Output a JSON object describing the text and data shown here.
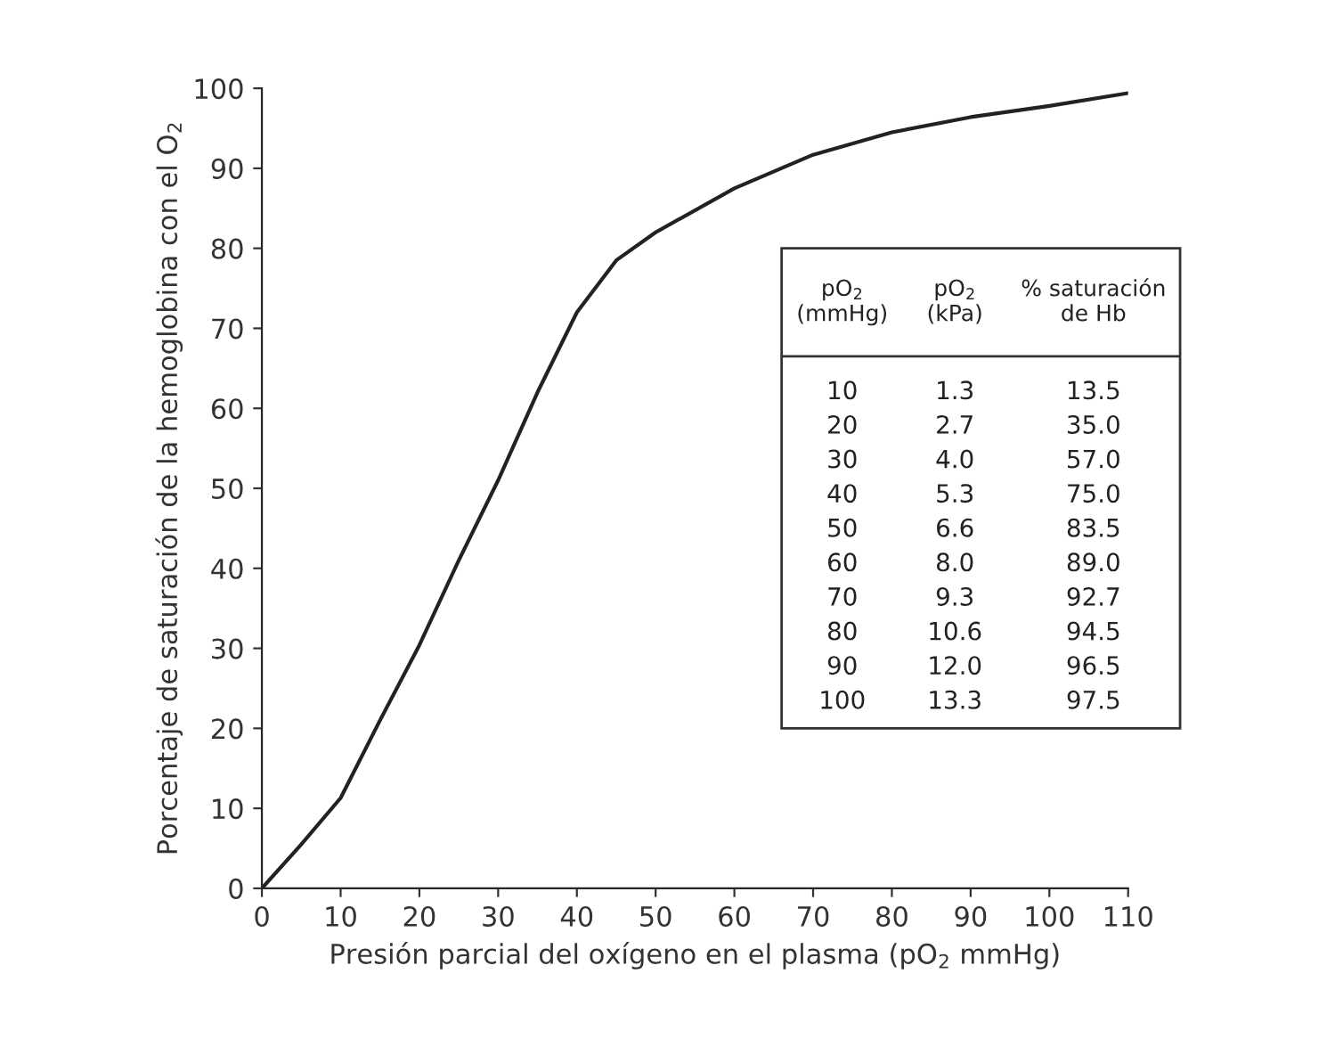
{
  "chart_data": {
    "type": "line",
    "xlabel": "Presión parcial del oxígeno en el plasma (pO$_{2}$ mmHg)",
    "ylabel": "Porcentaje de saturación de la hemoglobina con el O$_{2}$",
    "x": [
      0,
      5,
      10,
      15,
      20,
      25,
      30,
      35,
      40,
      45,
      50,
      60,
      70,
      80,
      90,
      100,
      110
    ],
    "series": [
      {
        "color": "#222222",
        "values": [
          0,
          5.5,
          11.3,
          21,
          30.4,
          41,
          51,
          62,
          72,
          78.5,
          82,
          87.5,
          91.7,
          94.5,
          96.4,
          97.8,
          99.4
        ]
      }
    ],
    "xlim": [
      0,
      110
    ],
    "ylim": [
      0,
      100
    ],
    "xticks": [
      0,
      10,
      20,
      30,
      40,
      50,
      60,
      70,
      80,
      90,
      100,
      110
    ],
    "yticks": [
      0,
      10,
      20,
      30,
      40,
      50,
      60,
      70,
      80,
      90,
      100
    ],
    "grid": false,
    "legend": false,
    "marker": "none",
    "line_style": "solid",
    "annotations": [
      "pO$_{2}$\n(mmHg)",
      "pO$_{2}$\n(kPa)",
      "% saturación\nde Hb",
      "10",
      "1.3",
      "13.5",
      "20",
      "2.7",
      "35.0",
      "30",
      "4.0",
      "57.0",
      "40",
      "5.3",
      "75.0",
      "50",
      "6.6",
      "83.5",
      "60",
      "8.0",
      "89.0",
      "70",
      "9.3",
      "92.7",
      "80",
      "10.6",
      "94.5",
      "90",
      "12.0",
      "96.5",
      "100",
      "13.3",
      "97.5"
    ]
  }
}
